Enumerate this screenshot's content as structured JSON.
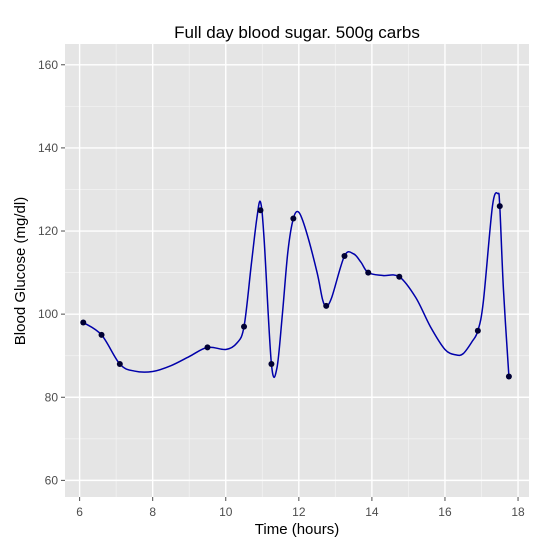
{
  "chart_data": {
    "type": "line",
    "title": "Full day blood sugar. 500g carbs",
    "xlabel": "Time (hours)",
    "ylabel": "Blood Glucose (mg/dl)",
    "xlim": [
      5.6,
      18.3
    ],
    "ylim": [
      56,
      165
    ],
    "x_ticks": [
      6,
      8,
      10,
      12,
      14,
      16,
      18
    ],
    "y_ticks": [
      60,
      80,
      100,
      120,
      140,
      160
    ],
    "grid": true,
    "colors": {
      "panel": "#e5e5e5",
      "grid": "#ffffff",
      "line": "#0000aa",
      "points": "#000033"
    },
    "series": [
      {
        "points": [
          {
            "x": 6.1,
            "y": 98
          },
          {
            "x": 6.6,
            "y": 95
          },
          {
            "x": 7.1,
            "y": 88
          },
          {
            "x": 9.5,
            "y": 92
          },
          {
            "x": 10.5,
            "y": 97
          },
          {
            "x": 10.95,
            "y": 125
          },
          {
            "x": 11.25,
            "y": 88
          },
          {
            "x": 11.85,
            "y": 123
          },
          {
            "x": 12.75,
            "y": 102
          },
          {
            "x": 13.25,
            "y": 114
          },
          {
            "x": 13.9,
            "y": 110
          },
          {
            "x": 14.75,
            "y": 109
          },
          {
            "x": 16.9,
            "y": 96
          },
          {
            "x": 17.5,
            "y": 126
          },
          {
            "x": 17.75,
            "y": 85
          }
        ],
        "smooth_curve": [
          {
            "x": 6.1,
            "y": 98
          },
          {
            "x": 6.6,
            "y": 95
          },
          {
            "x": 7.1,
            "y": 88
          },
          {
            "x": 7.5,
            "y": 86.3
          },
          {
            "x": 8.0,
            "y": 86.2
          },
          {
            "x": 8.5,
            "y": 87.6
          },
          {
            "x": 9.0,
            "y": 89.8
          },
          {
            "x": 9.5,
            "y": 92
          },
          {
            "x": 10.0,
            "y": 91.5
          },
          {
            "x": 10.3,
            "y": 93
          },
          {
            "x": 10.5,
            "y": 97
          },
          {
            "x": 10.7,
            "y": 112
          },
          {
            "x": 10.85,
            "y": 123
          },
          {
            "x": 10.95,
            "y": 127
          },
          {
            "x": 11.05,
            "y": 118
          },
          {
            "x": 11.25,
            "y": 88
          },
          {
            "x": 11.4,
            "y": 87
          },
          {
            "x": 11.55,
            "y": 100
          },
          {
            "x": 11.7,
            "y": 115
          },
          {
            "x": 11.85,
            "y": 123
          },
          {
            "x": 12.0,
            "y": 124.5
          },
          {
            "x": 12.2,
            "y": 120
          },
          {
            "x": 12.5,
            "y": 110
          },
          {
            "x": 12.65,
            "y": 103.5
          },
          {
            "x": 12.75,
            "y": 102
          },
          {
            "x": 12.9,
            "y": 104
          },
          {
            "x": 13.25,
            "y": 114
          },
          {
            "x": 13.5,
            "y": 114.5
          },
          {
            "x": 13.7,
            "y": 112.5
          },
          {
            "x": 13.9,
            "y": 110
          },
          {
            "x": 14.3,
            "y": 109.3
          },
          {
            "x": 14.75,
            "y": 109
          },
          {
            "x": 15.2,
            "y": 104
          },
          {
            "x": 15.6,
            "y": 97
          },
          {
            "x": 16.0,
            "y": 91.5
          },
          {
            "x": 16.3,
            "y": 90.2
          },
          {
            "x": 16.5,
            "y": 90.5
          },
          {
            "x": 16.75,
            "y": 93.5
          },
          {
            "x": 16.9,
            "y": 96
          },
          {
            "x": 17.05,
            "y": 103
          },
          {
            "x": 17.3,
            "y": 126
          },
          {
            "x": 17.45,
            "y": 129
          },
          {
            "x": 17.5,
            "y": 126
          },
          {
            "x": 17.6,
            "y": 106
          },
          {
            "x": 17.75,
            "y": 85
          }
        ]
      }
    ]
  }
}
